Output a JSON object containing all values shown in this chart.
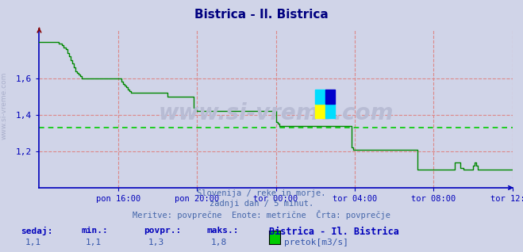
{
  "title": "Bistrica - Il. Bistrica",
  "title_color": "#000080",
  "bg_color": "#d0d4e8",
  "plot_bg_color": "#d0d4e8",
  "line_color": "#008800",
  "avg_line_color": "#00cc00",
  "avg_value": 1.33,
  "ylim": [
    1.0,
    1.87
  ],
  "yticks": [
    1.2,
    1.4,
    1.6
  ],
  "tick_color": "#0000bb",
  "grid_color": "#dd8888",
  "axis_color": "#0000bb",
  "watermark": "www.si-vreme.com",
  "watermark_color": "#b8bcd4",
  "subtitle1": "Slovenija / reke in morje.",
  "subtitle2": "zadnji dan / 5 minut.",
  "subtitle3": "Meritve: povprečne  Enote: metrične  Črta: povprečje",
  "footer_labels": [
    "sedaj:",
    "min.:",
    "povpr.:",
    "maks.:"
  ],
  "footer_values": [
    "1,1",
    "1,1",
    "1,3",
    "1,8"
  ],
  "footer_legend_label": "Bistrica - Il. Bistrica",
  "footer_legend_item": "pretok[m3/s]",
  "xtick_labels": [
    "pon 16:00",
    "pon 20:00",
    "tor 00:00",
    "tor 04:00",
    "tor 08:00",
    "tor 12:00"
  ],
  "xtick_positions": [
    48,
    96,
    144,
    192,
    240,
    288
  ],
  "n_points": 289,
  "flow_data": [
    1.8,
    1.8,
    1.8,
    1.8,
    1.8,
    1.8,
    1.8,
    1.8,
    1.8,
    1.8,
    1.8,
    1.8,
    1.79,
    1.79,
    1.78,
    1.77,
    1.76,
    1.74,
    1.72,
    1.7,
    1.68,
    1.66,
    1.64,
    1.63,
    1.62,
    1.61,
    1.6,
    1.6,
    1.6,
    1.6,
    1.6,
    1.6,
    1.6,
    1.6,
    1.6,
    1.6,
    1.6,
    1.6,
    1.6,
    1.6,
    1.6,
    1.6,
    1.6,
    1.6,
    1.6,
    1.6,
    1.6,
    1.6,
    1.6,
    1.6,
    1.58,
    1.57,
    1.56,
    1.55,
    1.54,
    1.53,
    1.52,
    1.52,
    1.52,
    1.52,
    1.52,
    1.52,
    1.52,
    1.52,
    1.52,
    1.52,
    1.52,
    1.52,
    1.52,
    1.52,
    1.52,
    1.52,
    1.52,
    1.52,
    1.52,
    1.52,
    1.52,
    1.52,
    1.5,
    1.5,
    1.5,
    1.5,
    1.5,
    1.5,
    1.5,
    1.5,
    1.5,
    1.5,
    1.5,
    1.5,
    1.5,
    1.5,
    1.5,
    1.5,
    1.44,
    1.43,
    1.42,
    1.42,
    1.42,
    1.42,
    1.42,
    1.42,
    1.42,
    1.42,
    1.42,
    1.42,
    1.42,
    1.42,
    1.42,
    1.42,
    1.42,
    1.42,
    1.42,
    1.42,
    1.42,
    1.42,
    1.42,
    1.42,
    1.42,
    1.42,
    1.42,
    1.42,
    1.42,
    1.42,
    1.42,
    1.42,
    1.42,
    1.42,
    1.42,
    1.42,
    1.42,
    1.42,
    1.42,
    1.42,
    1.42,
    1.42,
    1.42,
    1.42,
    1.42,
    1.42,
    1.42,
    1.42,
    1.42,
    1.42,
    1.36,
    1.35,
    1.34,
    1.34,
    1.34,
    1.34,
    1.34,
    1.34,
    1.34,
    1.34,
    1.34,
    1.34,
    1.34,
    1.34,
    1.34,
    1.34,
    1.34,
    1.34,
    1.34,
    1.34,
    1.34,
    1.34,
    1.34,
    1.34,
    1.34,
    1.34,
    1.34,
    1.34,
    1.34,
    1.34,
    1.34,
    1.34,
    1.34,
    1.34,
    1.34,
    1.34,
    1.34,
    1.34,
    1.34,
    1.34,
    1.34,
    1.34,
    1.34,
    1.34,
    1.34,
    1.34,
    1.22,
    1.21,
    1.21,
    1.21,
    1.21,
    1.21,
    1.21,
    1.21,
    1.21,
    1.21,
    1.21,
    1.21,
    1.21,
    1.21,
    1.21,
    1.21,
    1.21,
    1.21,
    1.21,
    1.21,
    1.21,
    1.21,
    1.21,
    1.21,
    1.21,
    1.21,
    1.21,
    1.21,
    1.21,
    1.21,
    1.21,
    1.21,
    1.21,
    1.21,
    1.21,
    1.21,
    1.21,
    1.21,
    1.21,
    1.21,
    1.1,
    1.1,
    1.1,
    1.1,
    1.1,
    1.1,
    1.1,
    1.1,
    1.1,
    1.1,
    1.1,
    1.1,
    1.1,
    1.1,
    1.1,
    1.1,
    1.1,
    1.1,
    1.1,
    1.1,
    1.1,
    1.1,
    1.1,
    1.14,
    1.14,
    1.14,
    1.11,
    1.11,
    1.1,
    1.1,
    1.1,
    1.1,
    1.1,
    1.1,
    1.12,
    1.14,
    1.12,
    1.1,
    1.1,
    1.1,
    1.1,
    1.1,
    1.1,
    1.1,
    1.1,
    1.1,
    1.1,
    1.1,
    1.1,
    1.1,
    1.1,
    1.1,
    1.1,
    1.1,
    1.1,
    1.1,
    1.1,
    1.1,
    1.1
  ]
}
